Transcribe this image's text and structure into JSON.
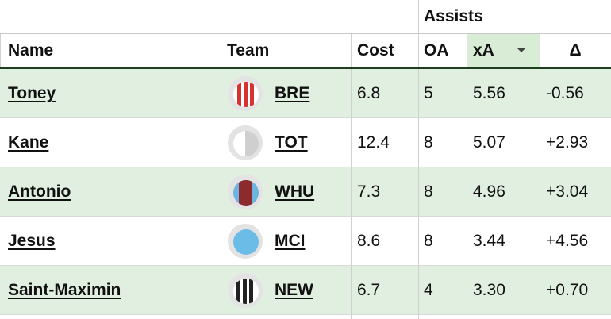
{
  "table": {
    "group_header": "Assists",
    "columns": [
      "Name",
      "Team",
      "Cost",
      "OA",
      "xA",
      "Δ"
    ],
    "rows": [
      [
        "Toney",
        "BRE",
        "6.8",
        "5",
        "5.56",
        "-0.56"
      ],
      [
        "Kane",
        "TOT",
        "12.4",
        "8",
        "5.07",
        "+2.93"
      ],
      [
        "Antonio",
        "WHU",
        "7.3",
        "8",
        "4.96",
        "+3.04"
      ],
      [
        "Jesus",
        "MCI",
        "8.6",
        "8",
        "3.44",
        "+4.56"
      ],
      [
        "Saint-Maximin",
        "NEW",
        "6.7",
        "4",
        "3.30",
        "+0.70"
      ]
    ]
  }
}
